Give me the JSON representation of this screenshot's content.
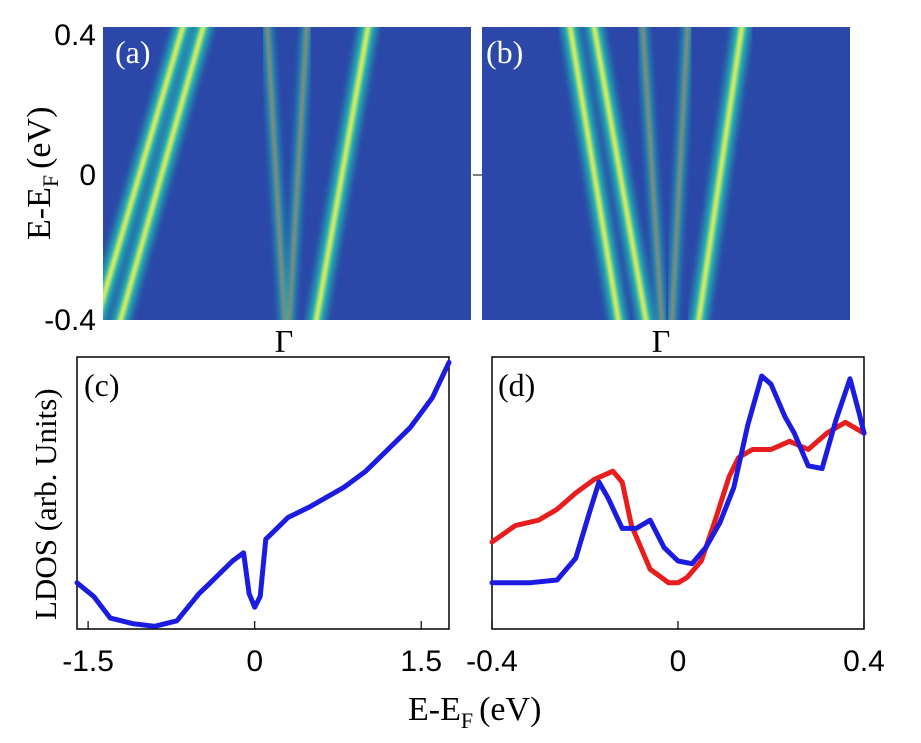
{
  "chart_data": [
    {
      "panel": "(a)",
      "type": "heatmap",
      "title": "",
      "ylabel": "E-E_F (eV)",
      "ylabel_main": "E-E",
      "ylabel_sub": "F",
      "ylabel_unit": "(eV)",
      "ylim": [
        -0.4,
        0.4
      ],
      "yticks": [
        "0.4",
        "0",
        "-0.4"
      ],
      "xtick": "Γ",
      "colors": {
        "background": "#2b48a8",
        "low": "#2f55c0",
        "mid": "#23c8b4",
        "high": "#e7f05a",
        "peak": "#b8845c"
      },
      "bands": [
        {
          "name": "outer-left",
          "k_top": -0.55,
          "k_bottom": -1.05
        },
        {
          "name": "outer-left-2",
          "k_top": -0.44,
          "k_bottom": -0.92
        },
        {
          "name": "outer-right",
          "k_top": 0.45,
          "k_bottom": 0.15
        },
        {
          "name": "inner-left",
          "k_top": -0.11,
          "k_bottom": -0.01
        },
        {
          "name": "inner-right",
          "k_top": 0.11,
          "k_bottom": 0.01
        }
      ]
    },
    {
      "panel": "(b)",
      "type": "heatmap",
      "ylim": [
        -0.4,
        0.4
      ],
      "xtick": "Γ",
      "bands": [
        {
          "name": "outer-left",
          "k_top": -0.53,
          "k_bottom": -0.25
        },
        {
          "name": "outer-left-2",
          "k_top": -0.4,
          "k_bottom": -0.1
        },
        {
          "name": "outer-right",
          "k_top": 0.42,
          "k_bottom": 0.17
        },
        {
          "name": "inner-left",
          "k_top": -0.13,
          "k_bottom": -0.02
        },
        {
          "name": "inner-right",
          "k_top": 0.12,
          "k_bottom": 0.03
        }
      ]
    },
    {
      "panel": "(c)",
      "type": "line",
      "xlabel": "E-E_F (eV)",
      "ylabel": "LDOS (arb. Units)",
      "xlim": [
        -1.6,
        1.75
      ],
      "xticks": [
        "-1.5",
        "0",
        "1.5"
      ],
      "ylim": [
        0,
        1
      ],
      "series": [
        {
          "name": "LDOS",
          "color": "#1c1ce0",
          "x": [
            -1.6,
            -1.45,
            -1.3,
            -1.1,
            -0.9,
            -0.7,
            -0.6,
            -0.5,
            -0.4,
            -0.3,
            -0.2,
            -0.1,
            -0.05,
            0,
            0.05,
            0.1,
            0.2,
            0.3,
            0.5,
            0.8,
            1.0,
            1.2,
            1.4,
            1.6,
            1.75
          ],
          "values": [
            0.17,
            0.12,
            0.04,
            0.02,
            0.01,
            0.03,
            0.08,
            0.13,
            0.17,
            0.21,
            0.25,
            0.28,
            0.13,
            0.08,
            0.12,
            0.33,
            0.37,
            0.41,
            0.45,
            0.52,
            0.58,
            0.66,
            0.74,
            0.85,
            0.98
          ]
        }
      ]
    },
    {
      "panel": "(d)",
      "type": "line",
      "xlabel": "E-E_F (eV)",
      "xlim": [
        -0.4,
        0.4
      ],
      "xticks": [
        "-0.4",
        "0",
        "0.4"
      ],
      "ylim": [
        0,
        1
      ],
      "series": [
        {
          "name": "red",
          "color": "#e81e1e",
          "x": [
            -0.4,
            -0.35,
            -0.3,
            -0.26,
            -0.22,
            -0.18,
            -0.14,
            -0.12,
            -0.1,
            -0.06,
            -0.02,
            0,
            0.02,
            0.05,
            0.08,
            0.11,
            0.13,
            0.16,
            0.2,
            0.24,
            0.28,
            0.32,
            0.36,
            0.4
          ],
          "values": [
            0.32,
            0.38,
            0.4,
            0.44,
            0.5,
            0.55,
            0.58,
            0.54,
            0.38,
            0.22,
            0.17,
            0.17,
            0.19,
            0.25,
            0.4,
            0.56,
            0.63,
            0.66,
            0.66,
            0.69,
            0.66,
            0.72,
            0.76,
            0.72
          ]
        },
        {
          "name": "blue",
          "color": "#1c1ce0",
          "x": [
            -0.4,
            -0.32,
            -0.26,
            -0.22,
            -0.19,
            -0.17,
            -0.15,
            -0.12,
            -0.09,
            -0.06,
            -0.03,
            0,
            0.03,
            0.06,
            0.09,
            0.12,
            0.15,
            0.18,
            0.2,
            0.23,
            0.25,
            0.28,
            0.31,
            0.34,
            0.37,
            0.39,
            0.4
          ],
          "values": [
            0.17,
            0.17,
            0.18,
            0.26,
            0.43,
            0.54,
            0.48,
            0.37,
            0.37,
            0.4,
            0.3,
            0.25,
            0.24,
            0.3,
            0.39,
            0.52,
            0.75,
            0.93,
            0.9,
            0.78,
            0.72,
            0.6,
            0.59,
            0.77,
            0.92,
            0.79,
            0.72
          ]
        }
      ]
    }
  ],
  "shared_xlabel": "E-E_F (eV)",
  "shared_xlabel_main": "E-E",
  "shared_xlabel_sub": "F",
  "shared_xlabel_unit": "(eV)"
}
